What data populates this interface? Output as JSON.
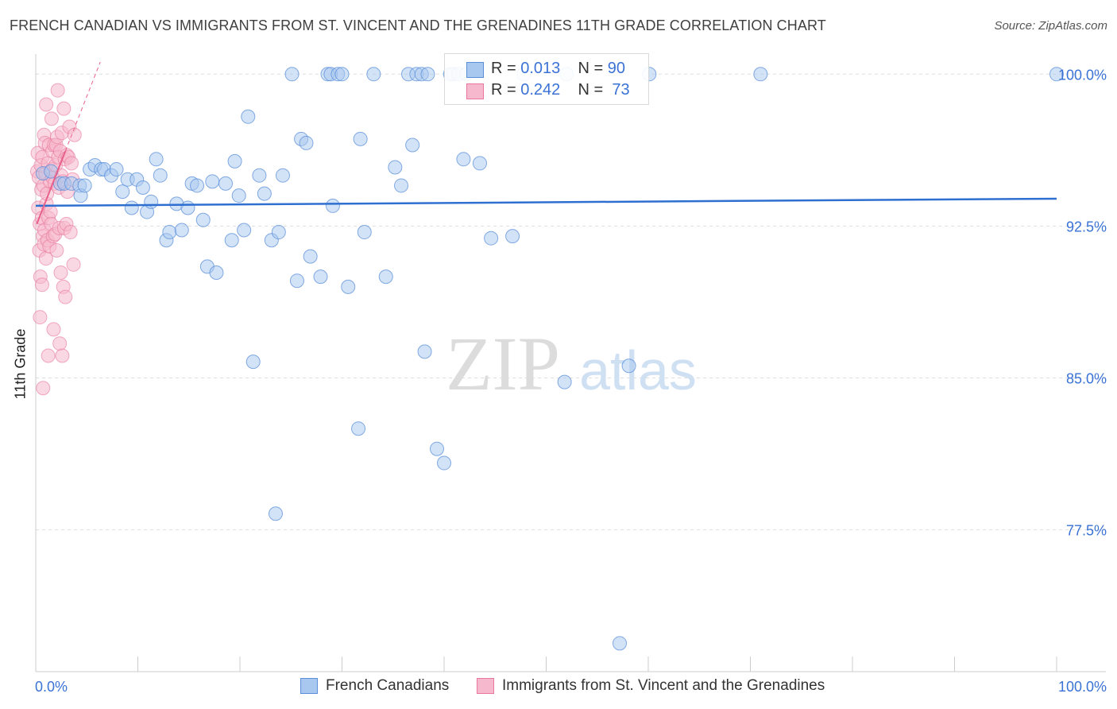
{
  "header": {
    "title": "FRENCH CANADIAN VS IMMIGRANTS FROM ST. VINCENT AND THE GRENADINES 11TH GRADE CORRELATION CHART",
    "source": "Source: ZipAtlas.com"
  },
  "watermark": {
    "zip": "ZIP",
    "atlas": "atlas"
  },
  "legend": {
    "series1": {
      "r_label": "R =",
      "r_value": "0.013",
      "n_label": "N =",
      "n_value": "90"
    },
    "series2": {
      "r_label": "R =",
      "r_value": "0.242",
      "n_label": "N =",
      "n_value": "73"
    }
  },
  "colors": {
    "blue_fill": "#a8c8f0",
    "blue_stroke": "#5b8fd9",
    "blue_line": "#2f6fd0",
    "pink_fill": "#f5b8cc",
    "pink_stroke": "#e8779b",
    "pink_line": "#e8608a",
    "grid": "#dddddd",
    "tick_text": "#3a72d6"
  },
  "chart_data": {
    "type": "scatter",
    "xlabel": "",
    "ylabel": "11th Grade",
    "xlim": [
      0,
      100
    ],
    "ylim": [
      70.5,
      100.6
    ],
    "x_tick_labels": [
      "0.0%",
      "100.0%"
    ],
    "y_ticks": [
      100.0,
      92.5,
      85.0,
      77.5
    ],
    "y_tick_labels": [
      "100.0%",
      "92.5%",
      "85.0%",
      "77.5%"
    ],
    "grid": true,
    "legend_position": "top-center",
    "series": [
      {
        "name": "French Canadians",
        "color": "#a8c8f0",
        "trend": {
          "x": [
            0,
            100
          ],
          "y": [
            93.5,
            93.85
          ]
        },
        "points": [
          [
            0.7,
            95.1
          ],
          [
            1.5,
            95.2
          ],
          [
            2.4,
            94.6
          ],
          [
            2.8,
            94.6
          ],
          [
            3.5,
            94.6
          ],
          [
            4.3,
            94.5
          ],
          [
            4.4,
            94.0
          ],
          [
            4.8,
            94.5
          ],
          [
            5.3,
            95.3
          ],
          [
            5.8,
            95.5
          ],
          [
            6.4,
            95.3
          ],
          [
            6.7,
            95.3
          ],
          [
            7.4,
            95.0
          ],
          [
            7.9,
            95.3
          ],
          [
            8.5,
            94.2
          ],
          [
            9.0,
            94.8
          ],
          [
            9.4,
            93.4
          ],
          [
            9.9,
            94.8
          ],
          [
            10.5,
            94.4
          ],
          [
            10.9,
            93.2
          ],
          [
            11.3,
            93.7
          ],
          [
            11.8,
            95.8
          ],
          [
            12.2,
            95.0
          ],
          [
            12.8,
            91.8
          ],
          [
            13.1,
            92.2
          ],
          [
            13.8,
            93.6
          ],
          [
            14.3,
            92.3
          ],
          [
            14.9,
            93.4
          ],
          [
            15.3,
            94.6
          ],
          [
            15.8,
            94.5
          ],
          [
            16.4,
            92.8
          ],
          [
            16.8,
            90.5
          ],
          [
            17.3,
            94.7
          ],
          [
            17.7,
            90.2
          ],
          [
            18.6,
            94.6
          ],
          [
            19.2,
            91.8
          ],
          [
            19.5,
            95.7
          ],
          [
            19.9,
            94.0
          ],
          [
            20.4,
            92.3
          ],
          [
            20.8,
            97.9
          ],
          [
            21.3,
            85.8
          ],
          [
            21.9,
            95.0
          ],
          [
            22.4,
            94.1
          ],
          [
            23.1,
            91.8
          ],
          [
            23.5,
            78.3
          ],
          [
            23.8,
            92.2
          ],
          [
            24.2,
            95.0
          ],
          [
            25.1,
            100.0
          ],
          [
            25.6,
            89.8
          ],
          [
            26.0,
            96.8
          ],
          [
            26.5,
            96.6
          ],
          [
            26.9,
            91.0
          ],
          [
            27.9,
            90.0
          ],
          [
            28.6,
            100.0
          ],
          [
            28.9,
            100.0
          ],
          [
            29.1,
            93.5
          ],
          [
            29.6,
            100.0
          ],
          [
            30.0,
            100.0
          ],
          [
            30.6,
            89.5
          ],
          [
            31.6,
            82.5
          ],
          [
            31.8,
            96.8
          ],
          [
            32.2,
            92.2
          ],
          [
            33.1,
            100.0
          ],
          [
            34.3,
            90.0
          ],
          [
            35.2,
            95.4
          ],
          [
            35.8,
            94.5
          ],
          [
            36.5,
            100.0
          ],
          [
            36.9,
            96.5
          ],
          [
            37.3,
            100.0
          ],
          [
            37.8,
            100.0
          ],
          [
            38.1,
            86.3
          ],
          [
            38.4,
            100.0
          ],
          [
            39.3,
            81.5
          ],
          [
            40.0,
            80.8
          ],
          [
            40.6,
            100.0
          ],
          [
            40.9,
            100.0
          ],
          [
            41.4,
            100.0
          ],
          [
            41.9,
            95.8
          ],
          [
            42.2,
            100.0
          ],
          [
            43.5,
            95.6
          ],
          [
            44.6,
            91.9
          ],
          [
            46.7,
            92.0
          ],
          [
            47.8,
            100.0
          ],
          [
            51.8,
            84.8
          ],
          [
            52.0,
            100.0
          ],
          [
            57.2,
            71.9
          ],
          [
            58.1,
            85.6
          ],
          [
            60.1,
            100.0
          ],
          [
            71.0,
            100.0
          ],
          [
            100.0,
            100.0
          ]
        ]
      },
      {
        "name": "Immigrants from St. Vincent and the Grenadines",
        "color": "#f5b8cc",
        "trend": {
          "x": [
            0.1,
            2.9
          ],
          "y": [
            92.6,
            96.2
          ]
        },
        "points": [
          [
            0.15,
            95.2
          ],
          [
            0.2,
            96.1
          ],
          [
            0.25,
            93.4
          ],
          [
            0.3,
            94.9
          ],
          [
            0.35,
            91.3
          ],
          [
            0.4,
            92.6
          ],
          [
            0.42,
            88.0
          ],
          [
            0.45,
            90.0
          ],
          [
            0.5,
            95.5
          ],
          [
            0.55,
            94.3
          ],
          [
            0.6,
            92.9
          ],
          [
            0.62,
            89.6
          ],
          [
            0.65,
            95.9
          ],
          [
            0.7,
            92.0
          ],
          [
            0.72,
            84.5
          ],
          [
            0.75,
            94.5
          ],
          [
            0.8,
            91.6
          ],
          [
            0.82,
            97.0
          ],
          [
            0.85,
            92.3
          ],
          [
            0.9,
            96.6
          ],
          [
            0.95,
            95.1
          ],
          [
            1.0,
            90.9
          ],
          [
            1.02,
            98.5
          ],
          [
            1.05,
            93.6
          ],
          [
            1.1,
            94.1
          ],
          [
            1.15,
            91.8
          ],
          [
            1.2,
            95.6
          ],
          [
            1.22,
            86.1
          ],
          [
            1.25,
            92.9
          ],
          [
            1.3,
            96.5
          ],
          [
            1.35,
            91.5
          ],
          [
            1.4,
            94.7
          ],
          [
            1.45,
            93.2
          ],
          [
            1.5,
            92.6
          ],
          [
            1.55,
            97.8
          ],
          [
            1.6,
            95.3
          ],
          [
            1.62,
            96.2
          ],
          [
            1.65,
            94.9
          ],
          [
            1.7,
            92.0
          ],
          [
            1.75,
            87.4
          ],
          [
            1.8,
            96.5
          ],
          [
            1.85,
            94.6
          ],
          [
            1.9,
            92.1
          ],
          [
            1.95,
            95.5
          ],
          [
            2.0,
            96.5
          ],
          [
            2.05,
            91.3
          ],
          [
            2.1,
            96.9
          ],
          [
            2.15,
            99.2
          ],
          [
            2.2,
            95.9
          ],
          [
            2.25,
            94.4
          ],
          [
            2.3,
            92.4
          ],
          [
            2.35,
            86.7
          ],
          [
            2.4,
            96.2
          ],
          [
            2.45,
            90.2
          ],
          [
            2.5,
            95.0
          ],
          [
            2.55,
            97.1
          ],
          [
            2.6,
            86.1
          ],
          [
            2.65,
            94.7
          ],
          [
            2.7,
            89.5
          ],
          [
            2.75,
            98.3
          ],
          [
            2.8,
            92.4
          ],
          [
            2.85,
            95.8
          ],
          [
            2.9,
            89.0
          ],
          [
            3.0,
            92.6
          ],
          [
            3.05,
            96.0
          ],
          [
            3.1,
            94.2
          ],
          [
            3.2,
            95.9
          ],
          [
            3.3,
            97.4
          ],
          [
            3.4,
            92.2
          ],
          [
            3.5,
            95.6
          ],
          [
            3.6,
            94.8
          ],
          [
            3.7,
            90.6
          ],
          [
            3.8,
            97.0
          ]
        ]
      }
    ]
  },
  "bottom_legend": {
    "item1": "French Canadians",
    "item2": "Immigrants from St. Vincent and the Grenadines"
  }
}
